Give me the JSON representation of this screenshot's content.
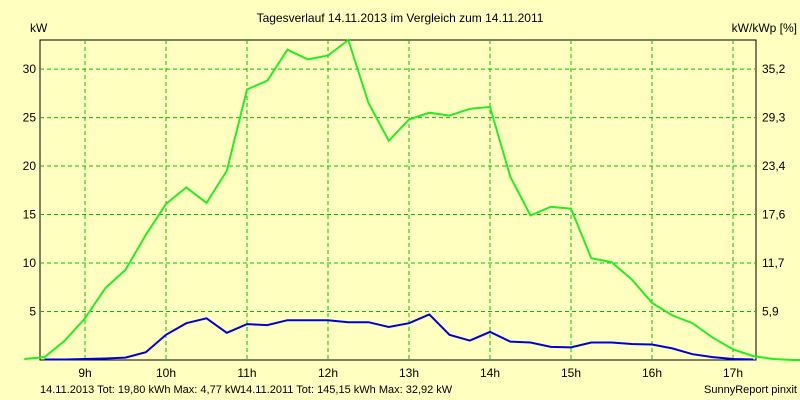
{
  "chart_data": {
    "type": "line",
    "title": "Tagesverlauf 14.11.2013 im Vergleich zum 14.11.2011",
    "ylabel_left": "kW",
    "ylabel_right": "kW/kWp [%]",
    "x_ticks": [
      "9h",
      "10h",
      "11h",
      "12h",
      "13h",
      "14h",
      "15h",
      "16h",
      "17h"
    ],
    "y_ticks_left": [
      "5",
      "10",
      "15",
      "20",
      "25",
      "30"
    ],
    "y_ticks_right": [
      "5,9",
      "11,7",
      "17,6",
      "23,4",
      "29,3",
      "35,2"
    ],
    "xlim": [
      8.25,
      18.0
    ],
    "ylim": [
      0,
      33
    ],
    "grid": true,
    "grid_color": "#00c000",
    "background": "#ffffc0",
    "series": [
      {
        "name": "14.11.2011",
        "color": "#22ee22",
        "x": [
          8.25,
          8.5,
          8.75,
          9.0,
          9.25,
          9.5,
          9.75,
          10.0,
          10.25,
          10.5,
          10.75,
          11.0,
          11.25,
          11.5,
          11.75,
          12.0,
          12.25,
          12.5,
          12.75,
          13.0,
          13.25,
          13.5,
          13.75,
          14.0,
          14.25,
          14.5,
          14.75,
          15.0,
          15.25,
          15.5,
          15.75,
          16.0,
          16.25,
          16.5,
          16.75,
          17.0,
          17.25,
          17.5,
          17.75,
          18.0
        ],
        "values": [
          0.1,
          0.3,
          2.0,
          4.3,
          7.4,
          9.3,
          12.9,
          16.1,
          17.8,
          16.2,
          19.5,
          27.9,
          28.8,
          32.0,
          31.0,
          31.4,
          33.0,
          26.5,
          22.6,
          24.8,
          25.5,
          25.2,
          25.9,
          26.1,
          18.9,
          14.9,
          15.8,
          15.6,
          10.5,
          10.1,
          8.3,
          5.9,
          4.6,
          3.8,
          2.3,
          1.1,
          0.4,
          0.1,
          0.0,
          0.0
        ]
      },
      {
        "name": "14.11.2013",
        "color": "#0000dd",
        "x": [
          8.5,
          8.75,
          9.0,
          9.25,
          9.5,
          9.75,
          10.0,
          10.25,
          10.5,
          10.75,
          11.0,
          11.25,
          11.5,
          11.75,
          12.0,
          12.25,
          12.5,
          12.75,
          13.0,
          13.25,
          13.5,
          13.75,
          14.0,
          14.25,
          14.5,
          14.75,
          15.0,
          15.25,
          15.5,
          15.75,
          16.0,
          16.25,
          16.5,
          16.75,
          17.0,
          17.25
        ],
        "values": [
          0.05,
          0.05,
          0.1,
          0.15,
          0.25,
          0.8,
          2.6,
          3.8,
          4.3,
          2.8,
          3.7,
          3.6,
          4.1,
          4.1,
          4.1,
          3.9,
          3.9,
          3.4,
          3.8,
          4.7,
          2.6,
          2.0,
          2.9,
          1.9,
          1.8,
          1.35,
          1.3,
          1.8,
          1.8,
          1.65,
          1.6,
          1.2,
          0.6,
          0.3,
          0.1,
          0.05
        ]
      }
    ]
  },
  "footer": {
    "series1_text": "14.11.2013 Tot: 19,80 kWh Max: 4,77 kW",
    "series1_color": "#0000dd",
    "series2_text": "14.11.2011 Tot: 145,15 kWh Max: 32,92 kW",
    "series2_color": "#00cc00",
    "credit": "SunnyReport pinxit"
  }
}
